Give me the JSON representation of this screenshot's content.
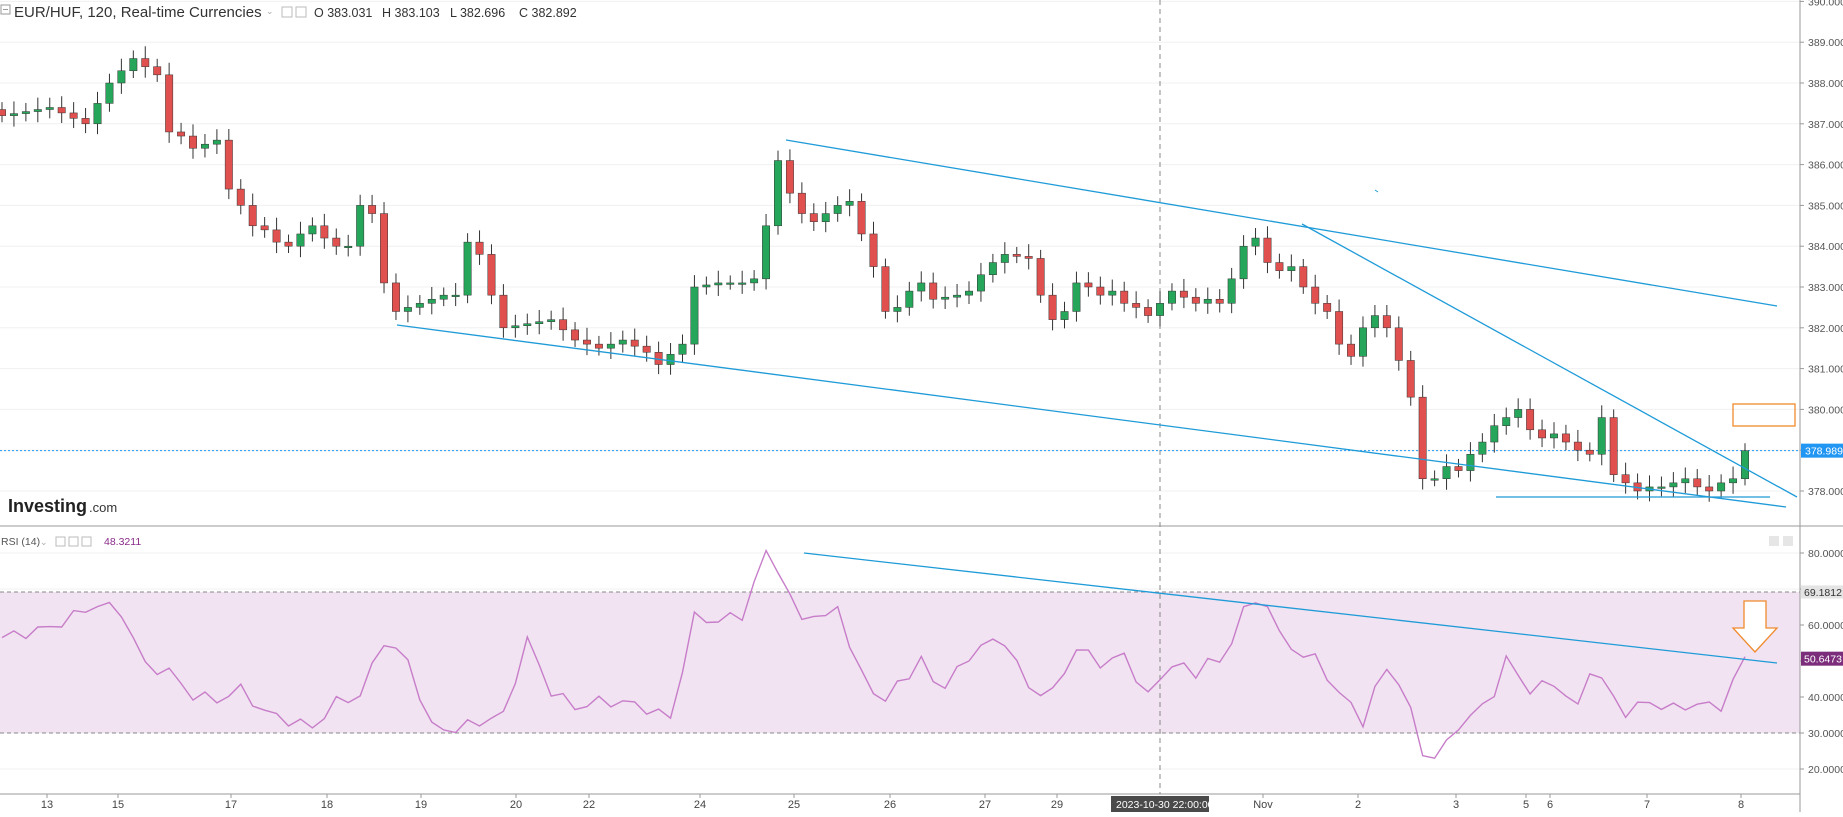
{
  "header": {
    "symbol_line": "EUR/HUF, 120, Real-time Currencies",
    "open": "O 383.031",
    "high": "H 383.103",
    "low": "L 382.696",
    "close": "C 382.892"
  },
  "watermark": {
    "brand": "Investing",
    "suffix": ".com"
  },
  "rsi_header": {
    "label": "RSI (14)",
    "value": "48.3211"
  },
  "crosshair_label": "2023-10-30 22:00:00",
  "colors": {
    "up": "#26a65b",
    "down": "#e0504f",
    "trendline": "#1f9bd8",
    "rsi_line": "#c77dc9",
    "rsi_band": "#f1e3f1",
    "marker": "#f08a2c",
    "price_tag": "#2196f3",
    "rsi_tag": "#7b2d7b",
    "gridline": "#f0f0f0"
  },
  "chart_data": [
    {
      "type": "candlestick",
      "title": "EUR/HUF, 120, Real-time Currencies",
      "ylim": [
        377.25,
        390.0
      ],
      "y_ticks": [
        "378.000",
        "379.000",
        "380.000",
        "381.000",
        "382.000",
        "383.000",
        "384.000",
        "385.000",
        "386.000",
        "387.000",
        "388.000",
        "389.000",
        "390.000"
      ],
      "x_ticks": [
        "13",
        "15",
        "17",
        "18",
        "19",
        "20",
        "22",
        "24",
        "25",
        "26",
        "27",
        "29",
        "30",
        "Nov",
        "2",
        "3",
        "5",
        "6",
        "7",
        "8"
      ],
      "last_price_label": "378.989",
      "last_price": 378.989,
      "close_path": [
        [
          0,
          387.2
        ],
        [
          4,
          387.4
        ],
        [
          7,
          387.0
        ],
        [
          9,
          388.0
        ],
        [
          11,
          388.6
        ],
        [
          13,
          388.2
        ],
        [
          14,
          386.8
        ],
        [
          15,
          386.7
        ],
        [
          16,
          386.4
        ],
        [
          18,
          386.6
        ],
        [
          19,
          385.4
        ],
        [
          20,
          385.0
        ],
        [
          21,
          384.5
        ],
        [
          22,
          384.4
        ],
        [
          23,
          384.1
        ],
        [
          24,
          384.0
        ],
        [
          25,
          384.3
        ],
        [
          26,
          384.5
        ],
        [
          27,
          384.2
        ],
        [
          28,
          384.0
        ],
        [
          29,
          384.0
        ],
        [
          30,
          385.0
        ],
        [
          31,
          384.8
        ],
        [
          32,
          383.1
        ],
        [
          33,
          382.4
        ],
        [
          35,
          382.6
        ],
        [
          37,
          382.8
        ],
        [
          38,
          382.8
        ],
        [
          39,
          384.1
        ],
        [
          40,
          383.8
        ],
        [
          41,
          382.8
        ],
        [
          42,
          382.0
        ],
        [
          44,
          382.1
        ],
        [
          46,
          382.2
        ],
        [
          48,
          381.7
        ],
        [
          50,
          381.5
        ],
        [
          52,
          381.7
        ],
        [
          54,
          381.4
        ],
        [
          55,
          381.1
        ],
        [
          57,
          381.6
        ],
        [
          58,
          383.0
        ],
        [
          60,
          383.1
        ],
        [
          62,
          383.1
        ],
        [
          63,
          383.2
        ],
        [
          64,
          384.5
        ],
        [
          65,
          386.1
        ],
        [
          66,
          385.3
        ],
        [
          67,
          384.8
        ],
        [
          68,
          384.6
        ],
        [
          70,
          385.0
        ],
        [
          71,
          385.1
        ],
        [
          72,
          384.3
        ],
        [
          73,
          383.5
        ],
        [
          74,
          382.4
        ],
        [
          75,
          382.5
        ],
        [
          76,
          382.9
        ],
        [
          77,
          383.1
        ],
        [
          78,
          382.7
        ],
        [
          80,
          382.8
        ],
        [
          81,
          382.9
        ],
        [
          82,
          383.3
        ],
        [
          83,
          383.6
        ],
        [
          84,
          383.8
        ],
        [
          86,
          383.7
        ],
        [
          87,
          382.8
        ],
        [
          88,
          382.2
        ],
        [
          89,
          382.4
        ],
        [
          90,
          383.1
        ],
        [
          91,
          383.0
        ],
        [
          92,
          382.8
        ],
        [
          93,
          382.9
        ],
        [
          94,
          382.6
        ],
        [
          95,
          382.5
        ],
        [
          96,
          382.3
        ],
        [
          97,
          382.6
        ],
        [
          98,
          382.9
        ],
        [
          100,
          382.6
        ],
        [
          101,
          382.7
        ],
        [
          102,
          382.6
        ],
        [
          103,
          383.2
        ],
        [
          104,
          384.0
        ],
        [
          105,
          384.2
        ],
        [
          106,
          383.6
        ],
        [
          107,
          383.4
        ],
        [
          108,
          383.5
        ],
        [
          109,
          383.0
        ],
        [
          110,
          382.6
        ],
        [
          111,
          382.4
        ],
        [
          112,
          381.6
        ],
        [
          113,
          381.3
        ],
        [
          114,
          382.0
        ],
        [
          115,
          382.3
        ],
        [
          116,
          382.0
        ],
        [
          117,
          381.2
        ],
        [
          118,
          380.3
        ],
        [
          119,
          378.3
        ],
        [
          120,
          378.3
        ],
        [
          121,
          378.6
        ],
        [
          122,
          378.5
        ],
        [
          123,
          378.9
        ],
        [
          124,
          379.2
        ],
        [
          125,
          379.6
        ],
        [
          126,
          379.8
        ],
        [
          127,
          380.0
        ],
        [
          128,
          379.5
        ],
        [
          129,
          379.3
        ],
        [
          130,
          379.4
        ],
        [
          131,
          379.2
        ],
        [
          132,
          379.0
        ],
        [
          133,
          378.9
        ],
        [
          134,
          379.8
        ],
        [
          135,
          378.4
        ],
        [
          136,
          378.2
        ],
        [
          137,
          378.0
        ],
        [
          138,
          378.1
        ],
        [
          139,
          378.1
        ],
        [
          140,
          378.2
        ],
        [
          141,
          378.3
        ],
        [
          142,
          378.1
        ],
        [
          143,
          378.0
        ],
        [
          144,
          378.2
        ],
        [
          145,
          378.3
        ],
        [
          146,
          378.989
        ]
      ],
      "annotations": [
        "descending channel upper line",
        "descending channel lower line",
        "falling wedge upper line",
        "support line",
        "target box near 379.9"
      ]
    },
    {
      "type": "line",
      "title": "RSI (14)",
      "ylim": [
        20,
        82
      ],
      "y_ticks": [
        "20.0000",
        "30.0000",
        "40.0000",
        "50.0000",
        "60.0000",
        "70.0000",
        "80.0000"
      ],
      "band": [
        30,
        69.1812
      ],
      "band_label": "69.1812",
      "last_value_label": "50.6473",
      "last_value": 50.6473,
      "rsi_path": [
        [
          0,
          56.5
        ],
        [
          4,
          59.2
        ],
        [
          8,
          65.8
        ],
        [
          10,
          63.6
        ],
        [
          12,
          48.8
        ],
        [
          14,
          46.9
        ],
        [
          16,
          40.4
        ],
        [
          18,
          39.2
        ],
        [
          20,
          42.1
        ],
        [
          22,
          35.8
        ],
        [
          24,
          33.5
        ],
        [
          26,
          31.6
        ],
        [
          28,
          38.5
        ],
        [
          30,
          40.5
        ],
        [
          32,
          55.8
        ],
        [
          34,
          49.8
        ],
        [
          36,
          31.6
        ],
        [
          38,
          31.0
        ],
        [
          40,
          33.2
        ],
        [
          42,
          34.9
        ],
        [
          44,
          55.7
        ],
        [
          46,
          41.6
        ],
        [
          48,
          37.2
        ],
        [
          50,
          38.7
        ],
        [
          52,
          38.6
        ],
        [
          54,
          36.8
        ],
        [
          56,
          34.1
        ],
        [
          58,
          62.0
        ],
        [
          60,
          61.2
        ],
        [
          62,
          62.8
        ],
        [
          64,
          80.0
        ],
        [
          65,
          76.0
        ],
        [
          66,
          67.3
        ],
        [
          67,
          61.8
        ],
        [
          68,
          63.4
        ],
        [
          69,
          61.0
        ],
        [
          70,
          66.2
        ],
        [
          71,
          53.9
        ],
        [
          72,
          46.2
        ],
        [
          73,
          42.5
        ],
        [
          74,
          38.0
        ],
        [
          75,
          44.0
        ],
        [
          76,
          46.5
        ],
        [
          77,
          49.8
        ],
        [
          78,
          44.8
        ],
        [
          79,
          43.2
        ],
        [
          80,
          46.9
        ],
        [
          81,
          51.3
        ],
        [
          82,
          54.2
        ],
        [
          84,
          55.8
        ],
        [
          86,
          42.4
        ],
        [
          88,
          41.0
        ],
        [
          90,
          53.6
        ],
        [
          92,
          49.5
        ],
        [
          94,
          51.3
        ],
        [
          96,
          40.2
        ],
        [
          98,
          49.5
        ],
        [
          100,
          46.2
        ],
        [
          101,
          51.0
        ],
        [
          102,
          48.3
        ],
        [
          104,
          64.4
        ],
        [
          106,
          66.6
        ],
        [
          107,
          57.0
        ],
        [
          108,
          53.6
        ],
        [
          110,
          50.4
        ],
        [
          112,
          41.3
        ],
        [
          114,
          33.3
        ],
        [
          115,
          42.0
        ],
        [
          116,
          47.3
        ],
        [
          117,
          44.8
        ],
        [
          118,
          35.6
        ],
        [
          119,
          24.3
        ],
        [
          120,
          23.7
        ],
        [
          121,
          26.5
        ],
        [
          122,
          32.2
        ],
        [
          124,
          37.1
        ],
        [
          125,
          41.7
        ],
        [
          126,
          50.3
        ],
        [
          127,
          45.9
        ],
        [
          128,
          42.1
        ],
        [
          130,
          43.8
        ],
        [
          131,
          40.7
        ],
        [
          132,
          36.6
        ],
        [
          133,
          47.9
        ],
        [
          134,
          44.8
        ],
        [
          135,
          39.4
        ],
        [
          136,
          35.9
        ],
        [
          138,
          38.6
        ],
        [
          140,
          36.7
        ],
        [
          142,
          38.2
        ],
        [
          143,
          37.3
        ],
        [
          144,
          37.6
        ],
        [
          145,
          44.2
        ],
        [
          146,
          50.6473
        ]
      ]
    }
  ]
}
